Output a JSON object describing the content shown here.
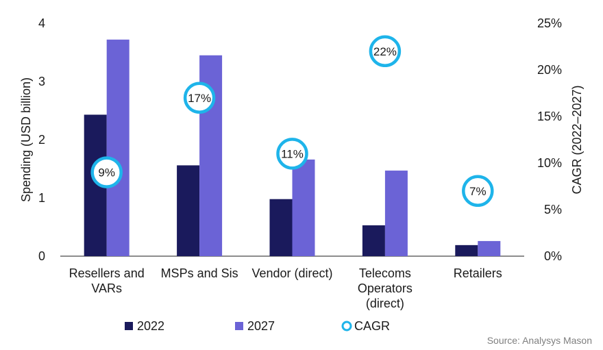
{
  "chart_data": {
    "type": "bar",
    "categories": [
      [
        "Resellers and",
        "VARs"
      ],
      [
        "MSPs and Sis"
      ],
      [
        "Vendor (direct)"
      ],
      [
        "Telecoms",
        "Operators",
        "(direct)"
      ],
      [
        "Retailers"
      ]
    ],
    "series": [
      {
        "name": "2022",
        "color": "#1a1a5c",
        "values": [
          2.43,
          1.56,
          0.98,
          0.53,
          0.19
        ]
      },
      {
        "name": "2027",
        "color": "#6b63d6",
        "values": [
          3.72,
          3.45,
          1.66,
          1.47,
          0.26
        ]
      }
    ],
    "cagr": {
      "name": "CAGR",
      "color": "#1eb4ea",
      "values": [
        9,
        17,
        11,
        22,
        7
      ],
      "labels": [
        "9%",
        "17%",
        "11%",
        "22%",
        "7%"
      ]
    },
    "ylabel": "Spending (USD billion)",
    "y2label": "CAGR (2022–2027)",
    "ylim": [
      0,
      4
    ],
    "yticks": [
      "0",
      "1",
      "2",
      "3",
      "4"
    ],
    "y2lim": [
      0,
      25
    ],
    "y2ticks": [
      "0%",
      "5%",
      "10%",
      "15%",
      "20%",
      "25%"
    ],
    "grid": false,
    "legend": "bottom"
  },
  "source": "Source: Analysys Mason"
}
